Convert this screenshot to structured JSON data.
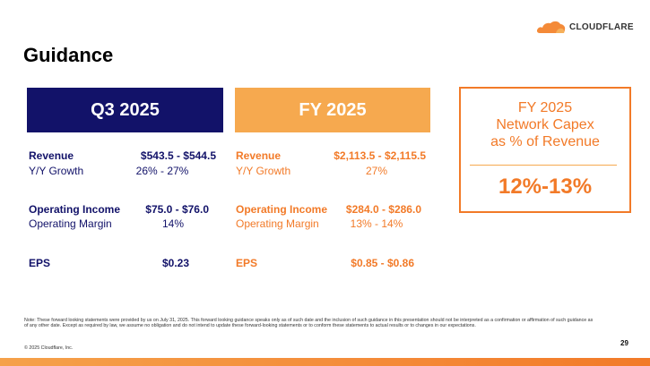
{
  "header": {
    "logo_text": "CLOUDFLARE",
    "title": "Guidance"
  },
  "colors": {
    "navy": "#121269",
    "orange": "#f27a28",
    "light_orange": "#f6a94f"
  },
  "q3": {
    "heading": "Q3 2025",
    "revenue_label": "Revenue",
    "revenue_value": "$543.5 - $544.5",
    "yoy_label": "Y/Y Growth",
    "yoy_value": "26% - 27%",
    "op_income_label": "Operating Income",
    "op_income_value": "$75.0 - $76.0",
    "op_margin_label": "Operating Margin",
    "op_margin_value": "14%",
    "eps_label": "EPS",
    "eps_value": "$0.23"
  },
  "fy": {
    "heading": "FY 2025",
    "revenue_label": "Revenue",
    "revenue_value": "$2,113.5 - $2,115.5",
    "yoy_label": "Y/Y Growth",
    "yoy_value": "27%",
    "op_income_label": "Operating Income",
    "op_income_value": "$284.0 - $286.0",
    "op_margin_label": "Operating Margin",
    "op_margin_value": "13% - 14%",
    "eps_label": "EPS",
    "eps_value": "$0.85 - $0.86"
  },
  "capex": {
    "line1": "FY 2025",
    "line2": "Network Capex",
    "line3": "as % of Revenue",
    "value": "12%-13%"
  },
  "footer": {
    "note": "Note: These forward looking statements were provided by us on July 31, 2025. This forward looking guidance speaks only as of such date and the inclusion of such guidance in this presentation should not be interpreted as a confirmation or affirmation of such guidance as of any other date. Except as required by law, we assume no obligation and do not intend to update these forward-looking statements or to conform these statements to actual results or to changes in our expectations.",
    "copyright": "© 2025 Cloudflare, Inc.",
    "page_number": "29"
  }
}
